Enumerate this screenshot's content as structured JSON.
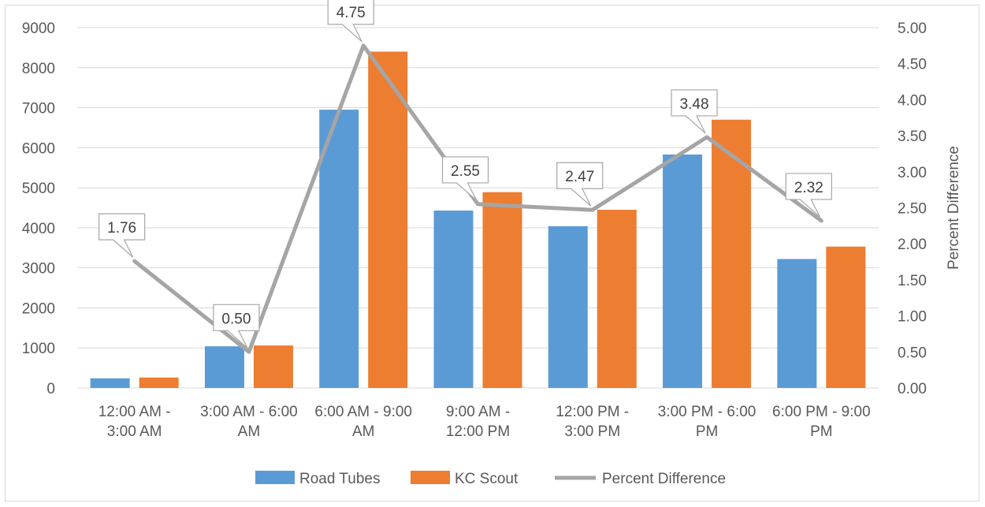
{
  "chart_data": {
    "type": "bar",
    "categories": [
      [
        "12:00 AM -",
        "3:00 AM"
      ],
      [
        "3:00 AM - 6:00",
        "AM"
      ],
      [
        "6:00 AM - 9:00",
        "AM"
      ],
      [
        "9:00 AM -",
        "12:00 PM"
      ],
      [
        "12:00 PM -",
        "3:00 PM"
      ],
      [
        "3:00 PM - 6:00",
        "PM"
      ],
      [
        "6:00 PM - 9:00",
        "PM"
      ]
    ],
    "series": [
      {
        "name": "Road Tubes",
        "type": "bar",
        "axis": "left",
        "color": "#5B9BD5",
        "values": [
          240,
          1040,
          6950,
          4430,
          4040,
          5830,
          3220
        ]
      },
      {
        "name": "KC Scout",
        "type": "bar",
        "axis": "left",
        "color": "#ED7D31",
        "values": [
          260,
          1060,
          8400,
          4890,
          4450,
          6700,
          3530
        ]
      },
      {
        "name": "Percent Difference",
        "type": "line",
        "axis": "right",
        "color": "#A5A5A5",
        "values": [
          1.76,
          0.5,
          4.75,
          2.55,
          2.47,
          3.48,
          2.32
        ],
        "labels": [
          "1.76",
          "0.50",
          "4.75",
          "2.55",
          "2.47",
          "3.48",
          "2.32"
        ]
      }
    ],
    "left_axis": {
      "min": 0,
      "max": 9000,
      "step": 1000,
      "ticks": [
        "0",
        "1000",
        "2000",
        "3000",
        "4000",
        "5000",
        "6000",
        "7000",
        "8000",
        "9000"
      ]
    },
    "right_axis": {
      "min": 0,
      "max": 5,
      "step": 0.5,
      "label": "Percent Difference",
      "ticks": [
        "0.00",
        "0.50",
        "1.00",
        "1.50",
        "2.00",
        "2.50",
        "3.00",
        "3.50",
        "4.00",
        "4.50",
        "5.00"
      ]
    },
    "grid": true,
    "legend_position": "bottom"
  }
}
